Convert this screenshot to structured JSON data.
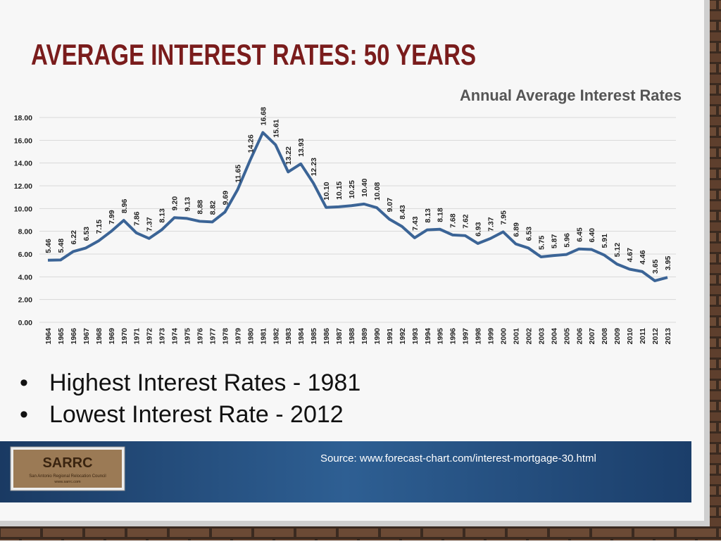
{
  "slide": {
    "title": "AVERAGE INTEREST RATES: 50 YEARS",
    "bullets": [
      "Highest Interest Rates - 1981",
      "Lowest Interest Rate -  2012"
    ],
    "source": "Source: www.forecast-chart.com/interest-mortgage-30.html",
    "logo": {
      "name": "SARRC",
      "subtitle": "San Antonio Regional Relocation Council",
      "url": "www.sarrc.com"
    }
  },
  "chart_data": {
    "type": "line",
    "title": "Annual Average Interest Rates",
    "categories": [
      "1964",
      "1965",
      "1966",
      "1967",
      "1968",
      "1969",
      "1970",
      "1971",
      "1972",
      "1973",
      "1974",
      "1975",
      "1976",
      "1977",
      "1978",
      "1979",
      "1980",
      "1981",
      "1982",
      "1983",
      "1984",
      "1985",
      "1986",
      "1987",
      "1988",
      "1989",
      "1990",
      "1991",
      "1992",
      "1993",
      "1994",
      "1995",
      "1996",
      "1997",
      "1998",
      "1999",
      "2000",
      "2001",
      "2002",
      "2003",
      "2004",
      "2005",
      "2006",
      "2007",
      "2008",
      "2009",
      "2010",
      "2011",
      "2012",
      "2013"
    ],
    "values": [
      5.46,
      5.48,
      6.22,
      6.53,
      7.15,
      7.99,
      8.96,
      7.86,
      7.37,
      8.13,
      9.2,
      9.13,
      8.88,
      8.82,
      9.69,
      11.65,
      14.26,
      16.68,
      15.61,
      13.22,
      13.93,
      12.23,
      10.1,
      10.15,
      10.25,
      10.4,
      10.08,
      9.07,
      8.43,
      7.43,
      8.13,
      8.18,
      7.68,
      7.62,
      6.93,
      7.37,
      7.95,
      6.89,
      6.53,
      5.75,
      5.87,
      5.96,
      6.45,
      6.4,
      5.91,
      5.12,
      4.67,
      4.46,
      3.65,
      3.95
    ],
    "value_labels": [
      "5.46",
      "5.48",
      "6.22",
      "6.53",
      "7.15",
      "7.99",
      "8.96",
      "7.86",
      "7.37",
      "8.13",
      "9.20",
      "9.13",
      "8.88",
      "8.82",
      "9.69",
      "11.65",
      "14.26",
      "16.68",
      "15.61",
      "13.22",
      "13.93",
      "12.23",
      "10.10",
      "10.15",
      "10.25",
      "10.40",
      "10.08",
      "9.07",
      "8.43",
      "7.43",
      "8.13",
      "8.18",
      "7.68",
      "7.62",
      "6.93",
      "7.37",
      "7.95",
      "6.89",
      "6.53",
      "5.75",
      "5.87",
      "5.96",
      "6.45",
      "6.40",
      "5.91",
      "5.12",
      "4.67",
      "4.46",
      "3.65",
      "3.95"
    ],
    "color": "#3b6496",
    "ylim": [
      0,
      18
    ],
    "yticks": [
      {
        "value": 0,
        "label": "0.00"
      },
      {
        "value": 2,
        "label": "2.00"
      },
      {
        "value": 4,
        "label": "4.00"
      },
      {
        "value": 6,
        "label": "6.00"
      },
      {
        "value": 8,
        "label": "8.00"
      },
      {
        "value": 10,
        "label": "10.00"
      },
      {
        "value": 12,
        "label": "12.00"
      },
      {
        "value": 14,
        "label": "14.00"
      },
      {
        "value": 16,
        "label": "16.00"
      },
      {
        "value": 18,
        "label": "18.00"
      }
    ],
    "grid": true
  }
}
